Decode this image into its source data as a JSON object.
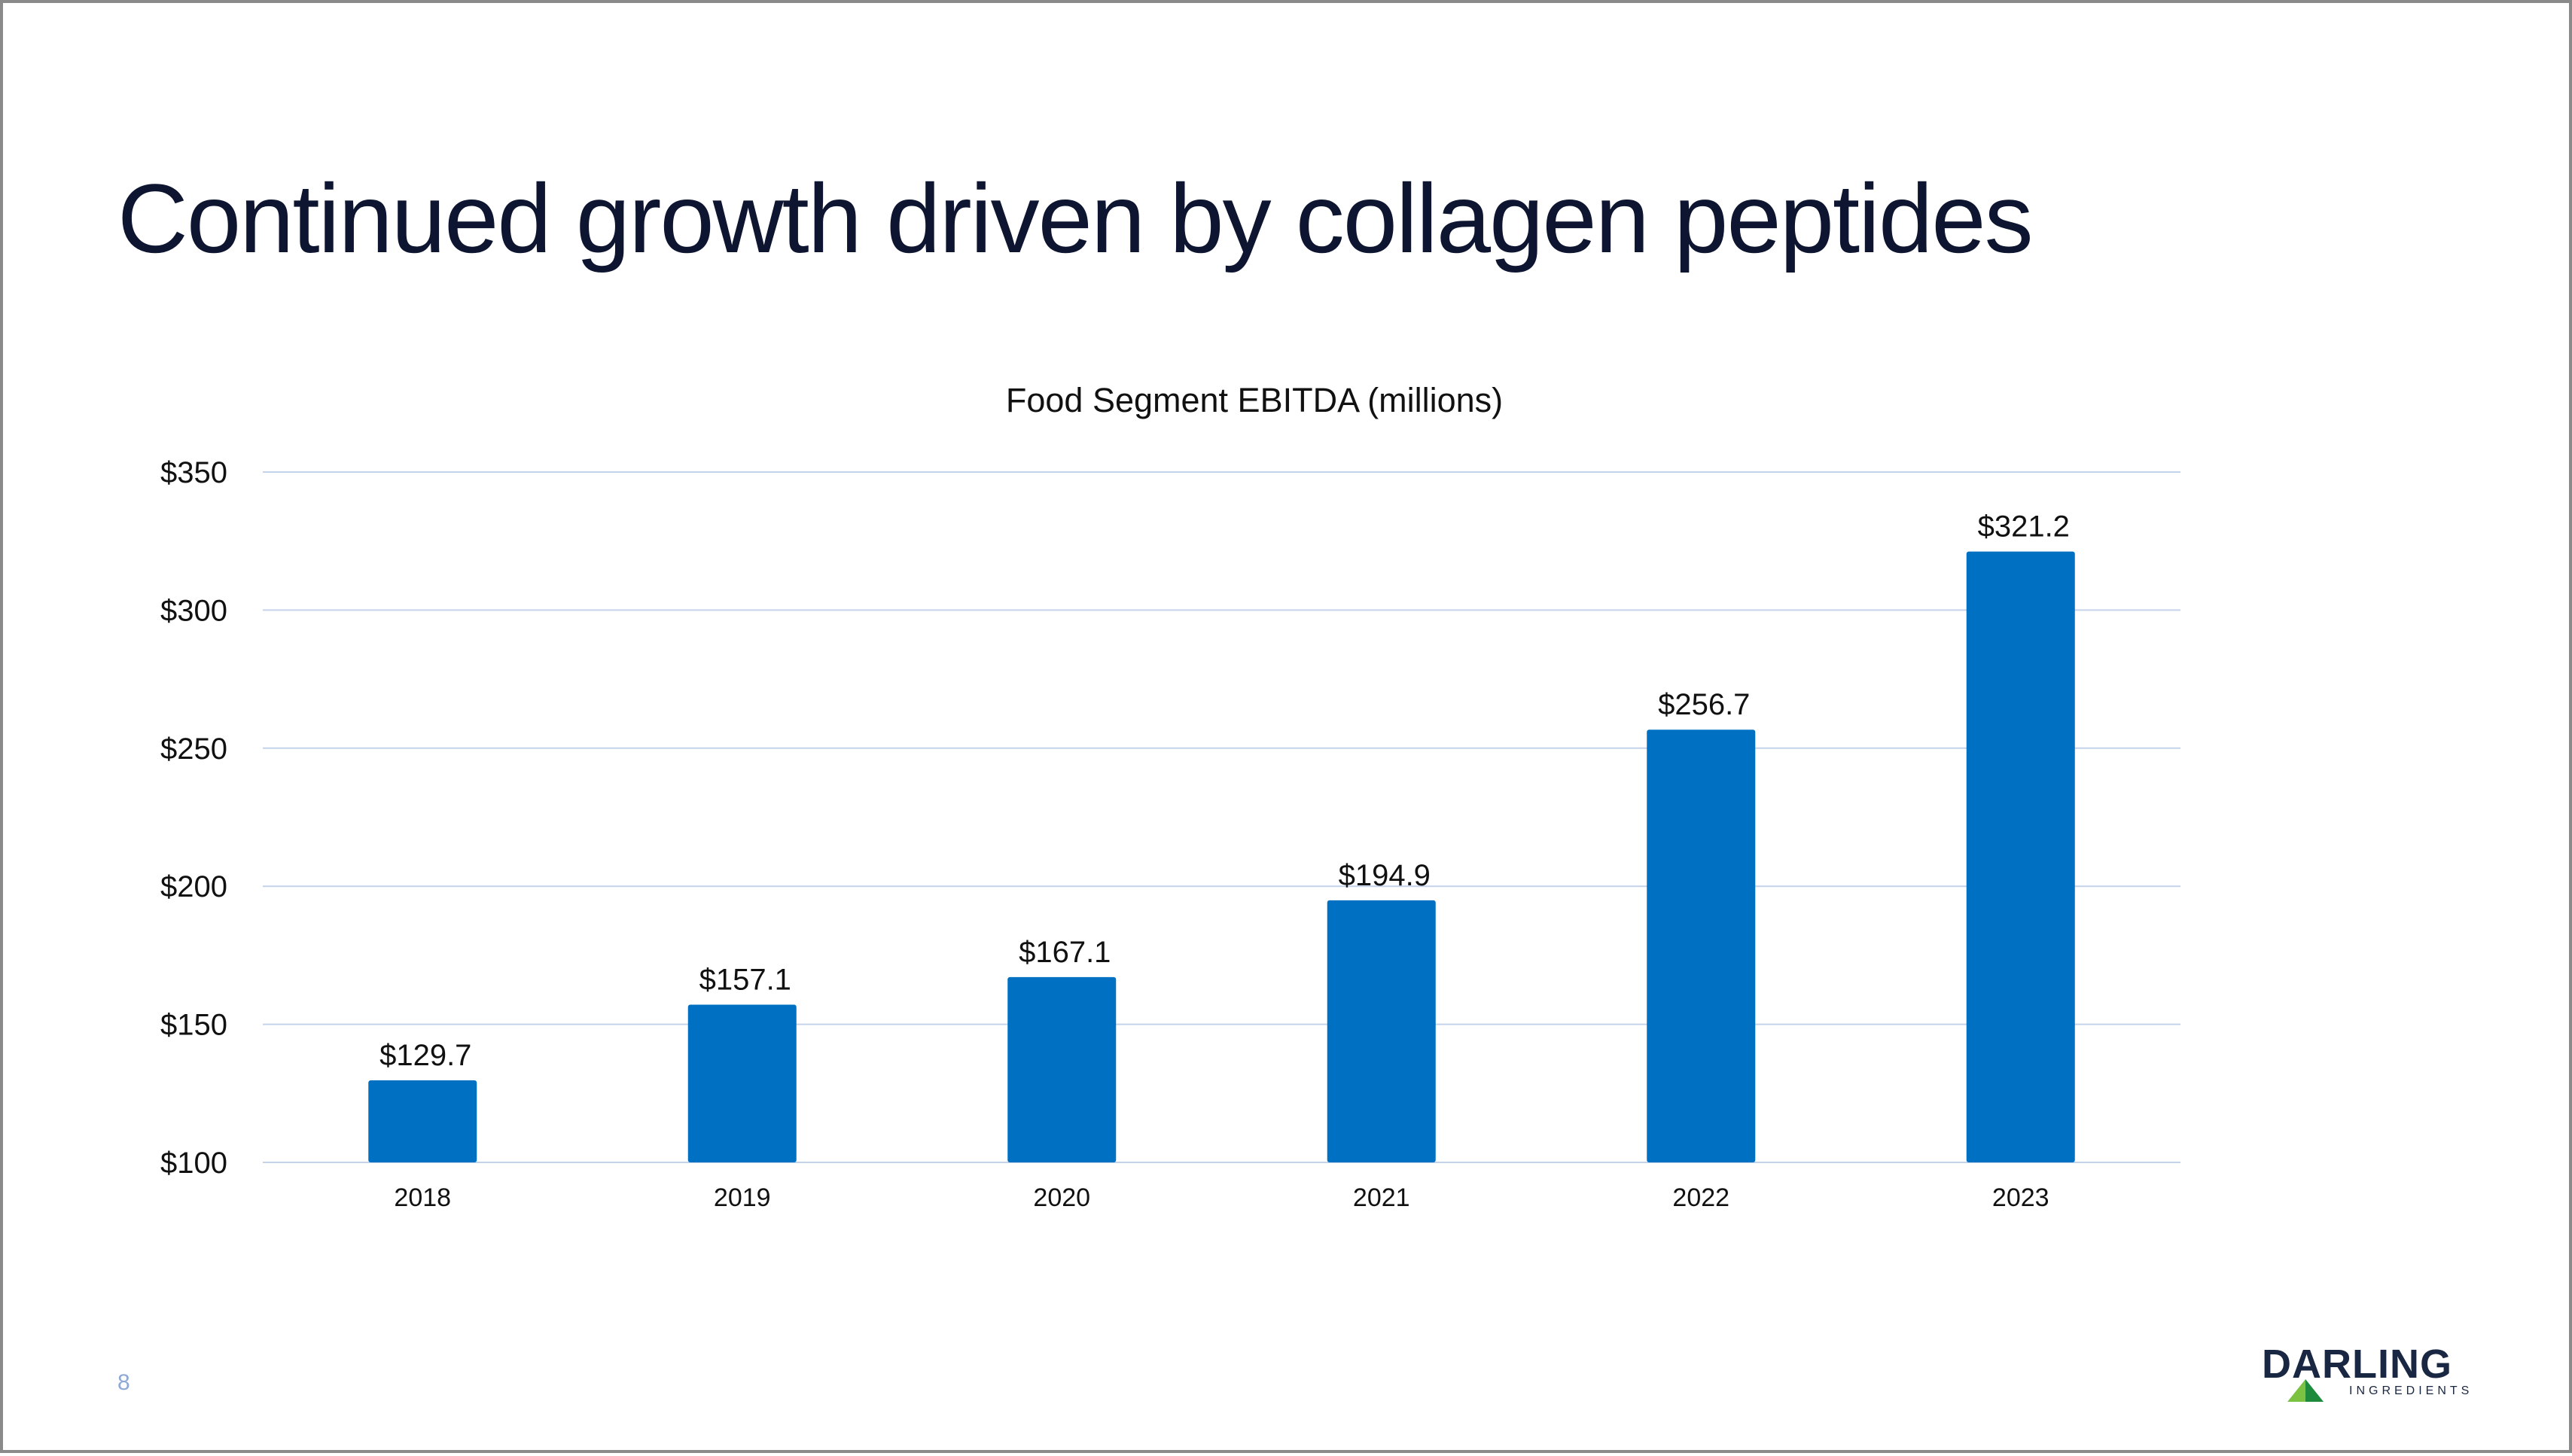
{
  "slide": {
    "title": "Continued growth driven by collagen peptides",
    "page_number": "8"
  },
  "logo": {
    "name": "DARLING",
    "subtitle": "INGREDIENTS",
    "colors": {
      "text": "#1a2742",
      "mark_light": "#7cc242",
      "mark_dark": "#1e8a3c"
    }
  },
  "colors": {
    "bar": "#0070c2",
    "gridline": "#c4d3ea",
    "title": "#0d1530"
  },
  "chart_data": {
    "type": "bar",
    "title": "Food Segment EBITDA (millions)",
    "categories": [
      "2018",
      "2019",
      "2020",
      "2021",
      "2022",
      "2023"
    ],
    "values": [
      129.7,
      157.1,
      167.1,
      194.9,
      256.7,
      321.2
    ],
    "data_labels": [
      "$129.7",
      "$157.1",
      "$167.1",
      "$194.9",
      "$256.7",
      "$321.2"
    ],
    "y_ticks": [
      100,
      150,
      200,
      250,
      300,
      350
    ],
    "y_tick_labels": [
      "$100",
      "$150",
      "$200",
      "$250",
      "$300",
      "$350"
    ],
    "ylim": [
      100,
      350
    ],
    "xlabel": "",
    "ylabel": "",
    "grid": true,
    "legend": "none"
  }
}
